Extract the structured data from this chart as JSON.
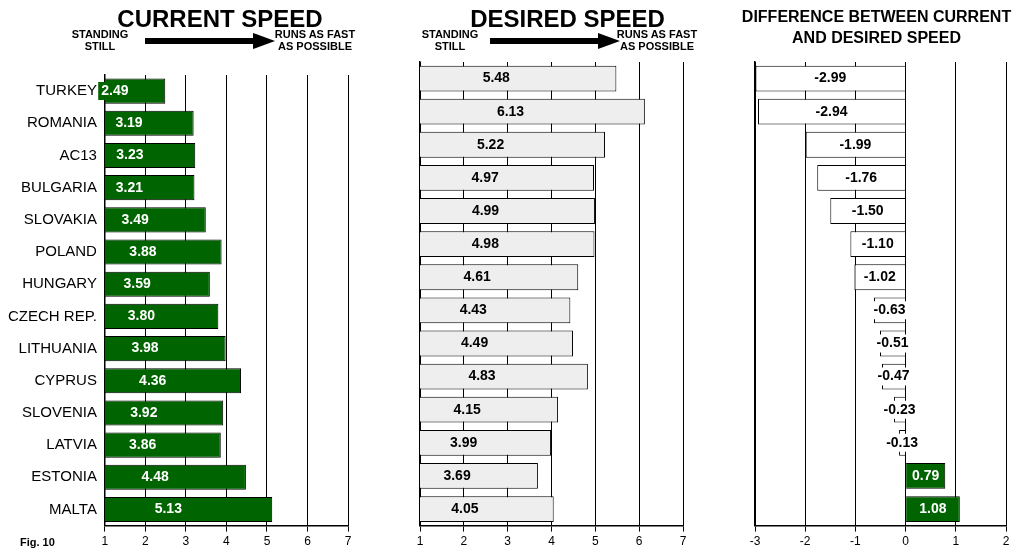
{
  "chart_data": [
    {
      "type": "bar",
      "orientation": "horizontal",
      "title": "CURRENT SPEED",
      "annotations": [
        "STANDING STILL",
        "RUNS AS FAST AS POSSIBLE",
        "Fig. 10"
      ],
      "categories": [
        "TURKEY",
        "ROMANIA",
        "AC13",
        "BULGARIA",
        "SLOVAKIA",
        "POLAND",
        "HUNGARY",
        "CZECH REP.",
        "LITHUANIA",
        "CYPRUS",
        "SLOVENIA",
        "LATVIA",
        "ESTONIA",
        "MALTA"
      ],
      "series": [
        {
          "color": "#006400",
          "values": [
            2.49,
            3.19,
            3.23,
            3.21,
            3.49,
            3.88,
            3.59,
            3.8,
            3.98,
            4.36,
            3.92,
            3.86,
            4.48,
            5.13
          ],
          "value_labels": [
            "2.49",
            "3.19",
            "3.23",
            "3.21",
            "3.49",
            "3.88",
            "3.59",
            "3.80",
            "3.98",
            "4.36",
            "3.92",
            "3.86",
            "4.48",
            "5.13"
          ]
        }
      ],
      "xlim": [
        1,
        7
      ],
      "xticks": [
        1,
        2,
        3,
        4,
        5,
        6,
        7
      ],
      "grid": "x"
    },
    {
      "type": "bar",
      "orientation": "horizontal",
      "title": "DESIRED SPEED",
      "annotations": [
        "STANDING STILL",
        "RUNS AS FAST AS POSSIBLE"
      ],
      "categories": [
        null,
        null,
        null,
        null,
        null,
        null,
        null,
        null,
        null,
        null,
        null,
        null,
        null,
        null
      ],
      "series": [
        {
          "color": "#eeeeee",
          "values": [
            5.48,
            6.13,
            5.22,
            4.97,
            4.99,
            4.98,
            4.61,
            4.43,
            4.49,
            4.83,
            4.15,
            3.99,
            3.69,
            4.05
          ],
          "value_labels": [
            "5.48",
            "6.13",
            "5.22",
            "4.97",
            "4.99",
            "4.98",
            "4.61",
            "4.43",
            "4.49",
            "4.83",
            "4.15",
            "3.99",
            "3.69",
            "4.05"
          ]
        }
      ],
      "xlim": [
        1,
        7
      ],
      "xticks": [
        1,
        2,
        3,
        4,
        5,
        6,
        7
      ],
      "grid": "x",
      "tick_labels": "x"
    },
    {
      "type": "bar",
      "orientation": "horizontal",
      "title": "DIFFERENCE BETWEEN CURRENT AND DESIRED SPEED",
      "categories": [
        null,
        null,
        null,
        null,
        null,
        null,
        null,
        null,
        null,
        null,
        null,
        null,
        null,
        null
      ],
      "series": [
        {
          "colors": [
            "#ffffff",
            "#ffffff",
            "#ffffff",
            "#ffffff",
            "#ffffff",
            "#ffffff",
            "#ffffff",
            "#ffffff",
            "#ffffff",
            "#ffffff",
            "#ffffff",
            "#ffffff",
            "#006400",
            "#006400"
          ],
          "values": [
            -2.99,
            -2.94,
            -1.99,
            -1.76,
            -1.5,
            -1.1,
            -1.02,
            -0.63,
            -0.51,
            -0.47,
            -0.23,
            -0.13,
            0.79,
            1.08
          ],
          "value_labels": [
            "-2.99",
            "-2.94",
            "-1.99",
            "-1.76",
            "-1.50",
            "-1.10",
            "-1.02",
            "-0.63",
            "-0.51",
            "-0.47",
            "-0.23",
            "-0.13",
            "0.79",
            "1.08"
          ]
        }
      ],
      "xlim": [
        -3,
        2
      ],
      "xticks": [
        -3,
        -2,
        -1,
        0,
        1,
        2
      ],
      "grid": "x",
      "tick_labels": "x"
    }
  ]
}
